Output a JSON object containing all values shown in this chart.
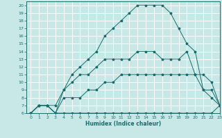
{
  "title": "",
  "xlabel": "Humidex (Indice chaleur)",
  "ylabel": "",
  "background_color": "#c8e8e8",
  "grid_color": "#ffffff",
  "line_color": "#1a6b6b",
  "xlim": [
    -0.5,
    23
  ],
  "ylim": [
    6,
    20.5
  ],
  "xticks": [
    0,
    1,
    2,
    3,
    4,
    5,
    6,
    7,
    8,
    9,
    10,
    11,
    12,
    13,
    14,
    15,
    16,
    17,
    18,
    19,
    20,
    21,
    22,
    23
  ],
  "yticks": [
    6,
    7,
    8,
    9,
    10,
    11,
    12,
    13,
    14,
    15,
    16,
    17,
    18,
    19,
    20
  ],
  "curves": [
    {
      "x": [
        0,
        1,
        2,
        3,
        4,
        5,
        6,
        7,
        8,
        9,
        10,
        11,
        12,
        13,
        14,
        15,
        16,
        17,
        18,
        19,
        20,
        21,
        22,
        23
      ],
      "y": [
        6,
        7,
        7,
        6,
        6,
        6,
        6,
        6,
        6,
        6,
        6,
        6,
        6,
        6,
        6,
        6,
        6,
        6,
        6,
        6,
        6,
        6,
        6,
        7
      ]
    },
    {
      "x": [
        0,
        1,
        2,
        3,
        4,
        5,
        6,
        7,
        8,
        9,
        10,
        11,
        12,
        13,
        14,
        15,
        16,
        17,
        18,
        19,
        20,
        21,
        22,
        23
      ],
      "y": [
        6,
        7,
        7,
        6,
        8,
        8,
        8,
        9,
        9,
        10,
        10,
        11,
        11,
        11,
        11,
        11,
        11,
        11,
        11,
        11,
        11,
        11,
        10,
        7
      ]
    },
    {
      "x": [
        0,
        1,
        2,
        3,
        4,
        5,
        6,
        7,
        8,
        9,
        10,
        11,
        12,
        13,
        14,
        15,
        16,
        17,
        18,
        19,
        20,
        21,
        22,
        23
      ],
      "y": [
        6,
        7,
        7,
        6,
        9,
        10,
        11,
        11,
        12,
        13,
        13,
        13,
        13,
        14,
        14,
        14,
        13,
        13,
        13,
        14,
        11,
        9,
        9,
        7
      ]
    },
    {
      "x": [
        0,
        1,
        2,
        3,
        4,
        5,
        6,
        7,
        8,
        9,
        10,
        11,
        12,
        13,
        14,
        15,
        16,
        17,
        18,
        19,
        20,
        21,
        22,
        23
      ],
      "y": [
        6,
        7,
        7,
        7,
        9,
        11,
        12,
        13,
        14,
        16,
        17,
        18,
        19,
        20,
        20,
        20,
        20,
        19,
        17,
        15,
        14,
        9,
        8,
        7
      ]
    }
  ]
}
